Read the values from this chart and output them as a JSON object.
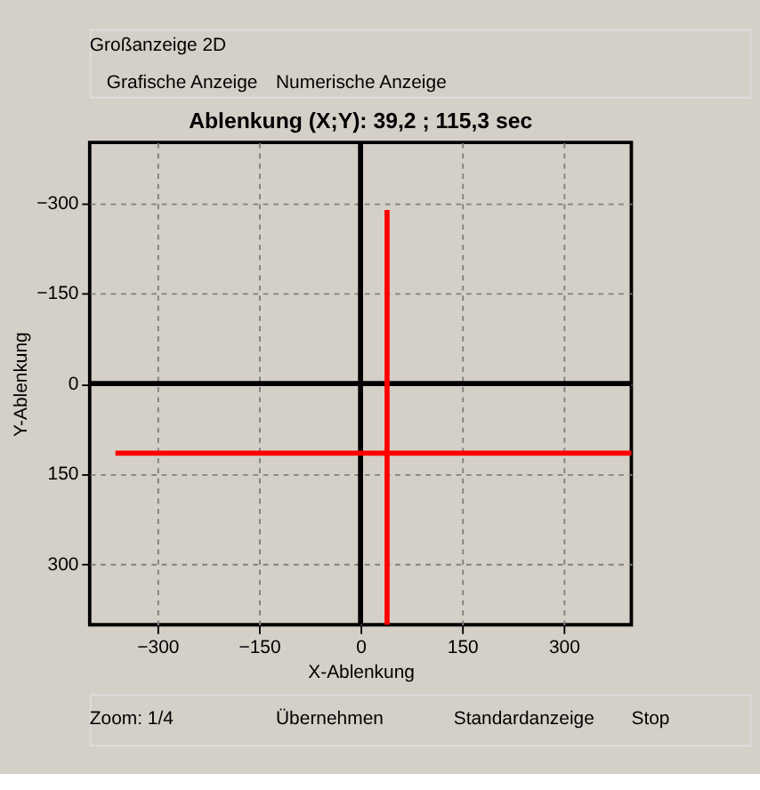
{
  "chart_data": {
    "type": "line",
    "title": "Ablenkung (X;Y):  39,2 ; 115,3 sec",
    "xlabel": "X-Ablenkung",
    "ylabel": "Y-Ablenkung",
    "xlim": [
      -400,
      400
    ],
    "ylim": [
      400,
      -400
    ],
    "xticks": [
      -300,
      -150,
      0,
      150,
      300
    ],
    "yticks": [
      -300,
      -150,
      0,
      150,
      300
    ],
    "grid": true,
    "marker": "none",
    "line_style": "solid",
    "series": [
      {
        "color": "#000000",
        "x": [
          0,
          0
        ],
        "values": [
          -400,
          400
        ]
      },
      {
        "color": "#000000",
        "x": [
          -400,
          400
        ],
        "values": [
          0,
          0
        ]
      },
      {
        "color": "#ff0000",
        "x": [
          39.2,
          39.2
        ],
        "values": [
          -288,
          400
        ]
      },
      {
        "color": "#ff0000",
        "x": [
          -362,
          400
        ],
        "values": [
          115.3,
          115.3
        ]
      }
    ],
    "annotations": [
      "Großanzeige 2D",
      "Grafische Anzeige",
      "Numerische Anzeige",
      "Zoom:  1/4",
      "Übernehmen",
      "Standardanzeige",
      "Stop"
    ]
  }
}
